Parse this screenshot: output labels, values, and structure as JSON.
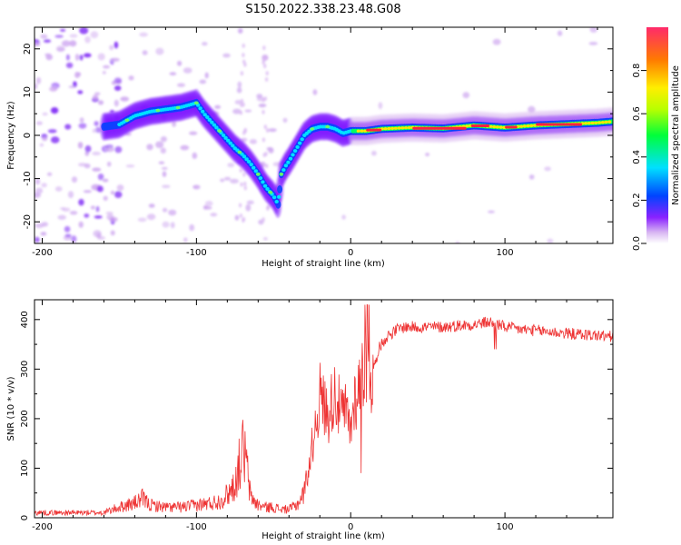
{
  "title": "S150.2022.338.23.48.G08",
  "chart_data": [
    {
      "type": "heatmap",
      "xlabel": "Height of straight line (km)",
      "ylabel": "Frequency (Hz)",
      "xlim": [
        -205,
        170
      ],
      "ylim": [
        -25,
        25
      ],
      "xticks": [
        -200,
        -100,
        0,
        100
      ],
      "yticks": [
        -20,
        -10,
        0,
        10,
        20
      ],
      "colorbar": {
        "label": "Normalized spectral amplitude",
        "ticks": [
          0.0,
          0.2,
          0.4,
          0.6,
          0.8
        ],
        "range": [
          0,
          1
        ],
        "colors": [
          "#ffffff",
          "#d9b8f2",
          "#6a00ff",
          "#0044ff",
          "#00e0ff",
          "#00ff3a",
          "#b8ff00",
          "#ffee00",
          "#ff7a00",
          "#ff2a6a"
        ]
      },
      "ridge": {
        "x": [
          -160,
          -150,
          -140,
          -130,
          -120,
          -110,
          -100,
          -95,
          -90,
          -85,
          -80,
          -75,
          -70,
          -65,
          -60,
          -55,
          -50,
          -47,
          -45,
          -42,
          -40,
          -35,
          -30,
          -25,
          -20,
          -15,
          -10,
          -5,
          0,
          5,
          10,
          20,
          40,
          60,
          80,
          100,
          120,
          140,
          160,
          170
        ],
        "y": [
          2,
          2.5,
          4.5,
          5.5,
          6,
          6.5,
          7.5,
          5,
          3,
          1,
          -1,
          -3,
          -4.5,
          -6.5,
          -9,
          -12,
          -14,
          -16,
          -9,
          -7,
          -6,
          -3,
          0,
          1.5,
          2,
          2,
          1.5,
          0.5,
          1,
          1,
          1,
          1.5,
          1.8,
          1.6,
          2.3,
          1.8,
          2.3,
          2.6,
          2.9,
          3.2
        ]
      }
    },
    {
      "type": "line",
      "xlabel": "Height of straight line (km)",
      "ylabel": "SNR (10 * v/v)",
      "xlim": [
        -205,
        170
      ],
      "ylim": [
        0,
        440
      ],
      "xticks": [
        -200,
        -100,
        0,
        100
      ],
      "yticks": [
        0,
        100,
        200,
        300,
        400
      ],
      "color": "#ee3333",
      "envelope": {
        "x": [
          -205,
          -160,
          -150,
          -140,
          -135,
          -130,
          -120,
          -110,
          -100,
          -90,
          -85,
          -80,
          -75,
          -72,
          -70,
          -68,
          -65,
          -60,
          -55,
          -50,
          -45,
          -40,
          -35,
          -30,
          -27,
          -25,
          -22,
          -20,
          -17,
          -15,
          -12,
          -10,
          -8,
          -5,
          -3,
          0,
          2,
          5,
          8,
          10,
          12,
          15,
          18,
          20,
          22,
          25,
          28,
          30,
          35,
          40,
          50,
          60,
          70,
          80,
          90,
          100,
          110,
          120,
          130,
          140,
          150,
          160,
          170
        ],
        "y": [
          12,
          12,
          25,
          35,
          45,
          30,
          25,
          25,
          30,
          35,
          40,
          55,
          80,
          130,
          160,
          140,
          50,
          30,
          25,
          25,
          20,
          20,
          30,
          60,
          100,
          140,
          200,
          240,
          220,
          200,
          230,
          250,
          220,
          200,
          210,
          170,
          230,
          250,
          300,
          320,
          250,
          300,
          340,
          350,
          360,
          370,
          375,
          380,
          385,
          385,
          385,
          385,
          388,
          390,
          395,
          385,
          380,
          378,
          375,
          372,
          370,
          368,
          365
        ]
      }
    }
  ]
}
